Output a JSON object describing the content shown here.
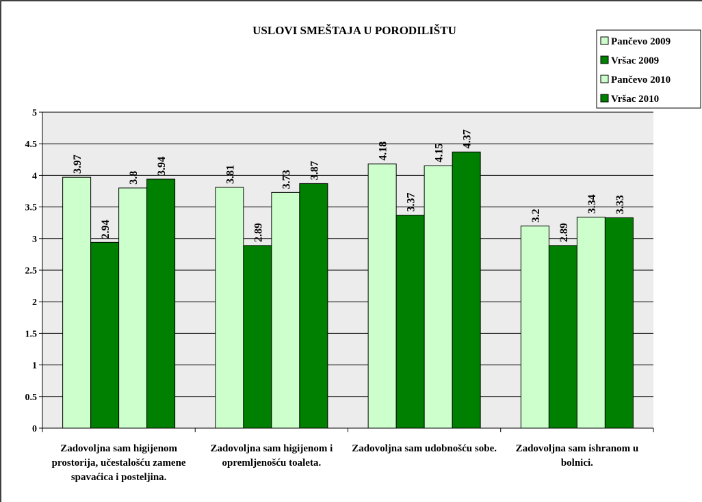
{
  "chart_data": {
    "type": "bar",
    "title": "USLOVI SMEŠTAJA U PORODILIŠTU",
    "categories": [
      "Zadovoljna sam higijenom prostorija, učestalošću zamene spavaćica i posteljina.",
      "Zadovoljna sam higijenom i opremljenošću toaleta.",
      "Zadovoljna sam udobnošću sobe.",
      "Zadovoljna sam ishranom u bolnici."
    ],
    "series": [
      {
        "name": "Pančevo 2009",
        "color": "#ccffcc",
        "values": [
          3.97,
          3.81,
          4.18,
          3.2
        ]
      },
      {
        "name": "Vršac 2009",
        "color": "#008000",
        "values": [
          2.94,
          2.89,
          3.37,
          2.89
        ]
      },
      {
        "name": "Pančevo 2010",
        "color": "#ccffcc",
        "values": [
          3.8,
          3.73,
          4.15,
          3.34
        ]
      },
      {
        "name": "Vršac 2010",
        "color": "#008000",
        "values": [
          3.94,
          3.87,
          4.37,
          3.33
        ]
      }
    ],
    "ylim": [
      0,
      5
    ],
    "yticks": [
      0,
      0.5,
      1,
      1.5,
      2,
      2.5,
      3,
      3.5,
      4,
      4.5,
      5
    ],
    "grid": true,
    "legend": "top-right"
  }
}
